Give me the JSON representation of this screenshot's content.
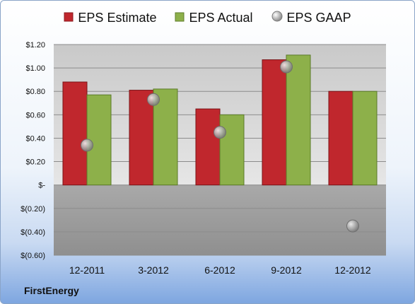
{
  "chart_data": {
    "type": "bar",
    "categories": [
      "12-2011",
      "3-2012",
      "6-2012",
      "9-2012",
      "12-2012"
    ],
    "series": [
      {
        "name": "EPS Estimate",
        "values": [
          0.88,
          0.81,
          0.65,
          1.07,
          0.8
        ]
      },
      {
        "name": "EPS Actual",
        "values": [
          0.77,
          0.82,
          0.6,
          1.11,
          0.8
        ]
      },
      {
        "name": "EPS GAAP",
        "values": [
          0.34,
          0.73,
          0.45,
          1.01,
          -0.35
        ]
      }
    ],
    "series_styles": [
      "bar",
      "bar",
      "marker"
    ],
    "colors": [
      "#c0272d",
      "#8db04a",
      "#a6a6a6"
    ],
    "ylim": [
      -0.6,
      1.2
    ],
    "yticks": [
      -0.6,
      -0.4,
      -0.2,
      0,
      0.2,
      0.4,
      0.6,
      0.8,
      1.0,
      1.2
    ],
    "ytick_labels": [
      "$(0.60)",
      "$(0.40)",
      "$(0.20)",
      "$-",
      "$0.20",
      "$0.40",
      "$0.60",
      "$0.80",
      "$1.00",
      "$1.20"
    ],
    "grid": true,
    "legend_position": "top",
    "title": "",
    "xlabel": "",
    "ylabel": ""
  },
  "company": "FirstEnergy"
}
